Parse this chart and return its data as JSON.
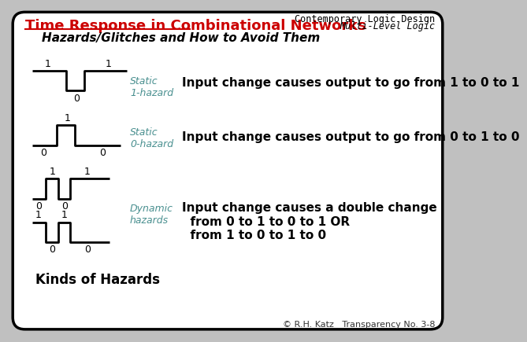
{
  "title": "Time Response in Combinational Networks",
  "subtitle": "Hazards/Glitches and How to Avoid Them",
  "top_right_line1": "Contemporary Logic Design",
  "top_right_line2": "Multi-Level Logic",
  "footer": "© R.H. Katz   Transparency No. 3-8",
  "bg_color": "#c0c0c0",
  "box_color": "#ffffff",
  "title_color": "#cc0000",
  "hazard_label_color": "#4a9090",
  "desc_color": "#000000",
  "waveform_color": "#000000",
  "static1_label": "Static\n1-hazard",
  "static0_label": "Static\n0-hazard",
  "dynamic_label": "Dynamic\nhazards",
  "static1_desc": "Input change causes output to go from 1 to 0 to 1",
  "static0_desc": "Input change causes output to go from 0 to 1 to 0",
  "dynamic_desc": "Input change causes a double change\n  from 0 to 1 to 0 to 1 OR\n  from 1 to 0 to 1 to 0",
  "kinds_label": "Kinds of Hazards"
}
